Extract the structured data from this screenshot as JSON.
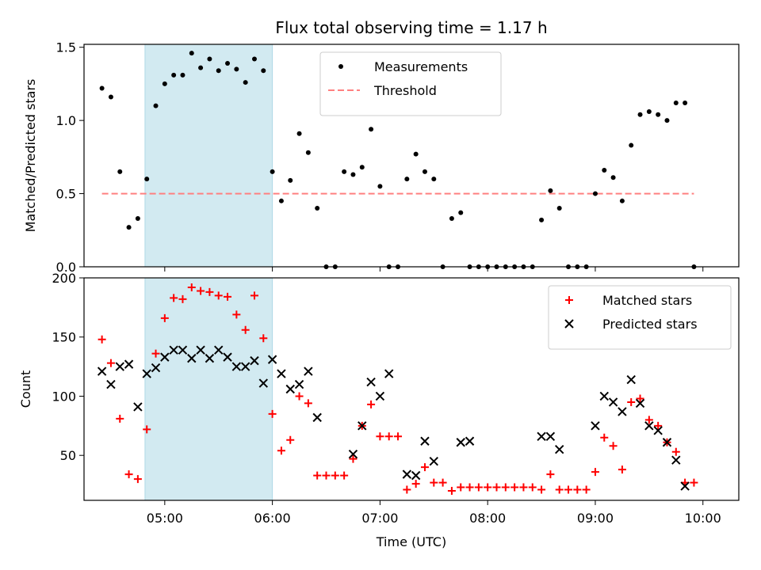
{
  "chart_data": {
    "title": "Flux total observing time = 1.17 h",
    "xlabel": "Time (UTC)",
    "x_ticks": [
      "05:00",
      "06:00",
      "07:00",
      "08:00",
      "09:00",
      "10:00"
    ],
    "x_domain": [
      "04:15",
      "10:20"
    ],
    "shaded_span": [
      "04:49",
      "06:00"
    ],
    "shade_color": "#add8e6",
    "panels": [
      {
        "type": "scatter",
        "ylabel": "Matched/Predicted stars",
        "ylim": [
          0,
          1.52
        ],
        "yticks": [
          0.0,
          0.5,
          1.0,
          1.5
        ],
        "ytick_labels": [
          "0.0",
          "0.5",
          "1.0",
          "1.5"
        ],
        "legend": "top-center",
        "threshold": {
          "name": "Threshold",
          "value": 0.5,
          "x_range": [
            "04:25",
            "09:55"
          ],
          "color": "#ff8080"
        },
        "series": [
          {
            "name": "Measurements",
            "marker": "dot",
            "color": "#000000",
            "points": [
              [
                "04:25",
                1.22
              ],
              [
                "04:30",
                1.16
              ],
              [
                "04:35",
                0.65
              ],
              [
                "04:40",
                0.27
              ],
              [
                "04:45",
                0.33
              ],
              [
                "04:50",
                0.6
              ],
              [
                "04:55",
                1.1
              ],
              [
                "05:00",
                1.25
              ],
              [
                "05:05",
                1.31
              ],
              [
                "05:10",
                1.31
              ],
              [
                "05:15",
                1.46
              ],
              [
                "05:20",
                1.36
              ],
              [
                "05:25",
                1.42
              ],
              [
                "05:30",
                1.34
              ],
              [
                "05:35",
                1.39
              ],
              [
                "05:40",
                1.35
              ],
              [
                "05:45",
                1.26
              ],
              [
                "05:50",
                1.42
              ],
              [
                "05:55",
                1.34
              ],
              [
                "06:00",
                0.65
              ],
              [
                "06:05",
                0.45
              ],
              [
                "06:10",
                0.59
              ],
              [
                "06:15",
                0.91
              ],
              [
                "06:20",
                0.78
              ],
              [
                "06:25",
                0.4
              ],
              [
                "06:30",
                0.0
              ],
              [
                "06:35",
                0.0
              ],
              [
                "06:40",
                0.65
              ],
              [
                "06:45",
                0.63
              ],
              [
                "06:50",
                0.68
              ],
              [
                "06:55",
                0.94
              ],
              [
                "07:00",
                0.55
              ],
              [
                "07:05",
                0.0
              ],
              [
                "07:10",
                0.0
              ],
              [
                "07:15",
                0.6
              ],
              [
                "07:20",
                0.77
              ],
              [
                "07:25",
                0.65
              ],
              [
                "07:30",
                0.6
              ],
              [
                "07:35",
                0.0
              ],
              [
                "07:40",
                0.33
              ],
              [
                "07:45",
                0.37
              ],
              [
                "07:50",
                0.0
              ],
              [
                "07:55",
                0.0
              ],
              [
                "08:00",
                0.0
              ],
              [
                "08:05",
                0.0
              ],
              [
                "08:10",
                0.0
              ],
              [
                "08:15",
                0.0
              ],
              [
                "08:20",
                0.0
              ],
              [
                "08:25",
                0.0
              ],
              [
                "08:30",
                0.32
              ],
              [
                "08:35",
                0.52
              ],
              [
                "08:40",
                0.4
              ],
              [
                "08:45",
                0.0
              ],
              [
                "08:50",
                0.0
              ],
              [
                "08:55",
                0.0
              ],
              [
                "09:00",
                0.5
              ],
              [
                "09:05",
                0.66
              ],
              [
                "09:10",
                0.61
              ],
              [
                "09:15",
                0.45
              ],
              [
                "09:20",
                0.83
              ],
              [
                "09:25",
                1.04
              ],
              [
                "09:30",
                1.06
              ],
              [
                "09:35",
                1.04
              ],
              [
                "09:40",
                1.0
              ],
              [
                "09:45",
                1.12
              ],
              [
                "09:50",
                1.12
              ],
              [
                "09:55",
                0.0
              ]
            ]
          }
        ]
      },
      {
        "type": "scatter",
        "ylabel": "Count",
        "ylim": [
          12,
          200
        ],
        "yticks": [
          50,
          100,
          150,
          200
        ],
        "ytick_labels": [
          "50",
          "100",
          "150",
          "200"
        ],
        "legend": "top-right",
        "series": [
          {
            "name": "Matched stars",
            "marker": "plus",
            "color": "#ff0000",
            "points": [
              [
                "04:25",
                148
              ],
              [
                "04:30",
                128
              ],
              [
                "04:35",
                81
              ],
              [
                "04:40",
                34
              ],
              [
                "04:45",
                30
              ],
              [
                "04:50",
                72
              ],
              [
                "04:55",
                136
              ],
              [
                "05:00",
                166
              ],
              [
                "05:05",
                183
              ],
              [
                "05:10",
                182
              ],
              [
                "05:15",
                192
              ],
              [
                "05:20",
                189
              ],
              [
                "05:25",
                188
              ],
              [
                "05:30",
                185
              ],
              [
                "05:35",
                184
              ],
              [
                "05:40",
                169
              ],
              [
                "05:45",
                156
              ],
              [
                "05:50",
                185
              ],
              [
                "05:55",
                149
              ],
              [
                "06:00",
                85
              ],
              [
                "06:05",
                54
              ],
              [
                "06:10",
                63
              ],
              [
                "06:15",
                100
              ],
              [
                "06:20",
                94
              ],
              [
                "06:25",
                33
              ],
              [
                "06:30",
                33
              ],
              [
                "06:35",
                33
              ],
              [
                "06:40",
                33
              ],
              [
                "06:45",
                47
              ],
              [
                "06:50",
                75
              ],
              [
                "06:55",
                93
              ],
              [
                "07:00",
                66
              ],
              [
                "07:05",
                66
              ],
              [
                "07:10",
                66
              ],
              [
                "07:15",
                21
              ],
              [
                "07:20",
                26
              ],
              [
                "07:25",
                40
              ],
              [
                "07:30",
                27
              ],
              [
                "07:35",
                27
              ],
              [
                "07:40",
                20
              ],
              [
                "07:45",
                23
              ],
              [
                "07:50",
                23
              ],
              [
                "07:55",
                23
              ],
              [
                "08:00",
                23
              ],
              [
                "08:05",
                23
              ],
              [
                "08:10",
                23
              ],
              [
                "08:15",
                23
              ],
              [
                "08:20",
                23
              ],
              [
                "08:25",
                23
              ],
              [
                "08:30",
                21
              ],
              [
                "08:35",
                34
              ],
              [
                "08:40",
                21
              ],
              [
                "08:45",
                21
              ],
              [
                "08:50",
                21
              ],
              [
                "08:55",
                21
              ],
              [
                "09:00",
                36
              ],
              [
                "09:05",
                65
              ],
              [
                "09:10",
                58
              ],
              [
                "09:15",
                38
              ],
              [
                "09:20",
                95
              ],
              [
                "09:25",
                98
              ],
              [
                "09:30",
                80
              ],
              [
                "09:35",
                75
              ],
              [
                "09:40",
                61
              ],
              [
                "09:45",
                53
              ],
              [
                "09:50",
                27
              ],
              [
                "09:55",
                27
              ]
            ]
          },
          {
            "name": "Predicted stars",
            "marker": "x",
            "color": "#000000",
            "points": [
              [
                "04:25",
                121
              ],
              [
                "04:30",
                110
              ],
              [
                "04:35",
                125
              ],
              [
                "04:40",
                127
              ],
              [
                "04:45",
                91
              ],
              [
                "04:50",
                119
              ],
              [
                "04:55",
                124
              ],
              [
                "05:00",
                133
              ],
              [
                "05:05",
                139
              ],
              [
                "05:10",
                139
              ],
              [
                "05:15",
                132
              ],
              [
                "05:20",
                139
              ],
              [
                "05:25",
                132
              ],
              [
                "05:30",
                139
              ],
              [
                "05:35",
                133
              ],
              [
                "05:40",
                125
              ],
              [
                "05:45",
                125
              ],
              [
                "05:50",
                130
              ],
              [
                "05:55",
                111
              ],
              [
                "06:00",
                131
              ],
              [
                "06:05",
                119
              ],
              [
                "06:10",
                106
              ],
              [
                "06:15",
                110
              ],
              [
                "06:20",
                121
              ],
              [
                "06:25",
                82
              ],
              [
                "06:45",
                51
              ],
              [
                "06:50",
                75
              ],
              [
                "06:55",
                112
              ],
              [
                "07:00",
                100
              ],
              [
                "07:05",
                119
              ],
              [
                "07:15",
                34
              ],
              [
                "07:20",
                33
              ],
              [
                "07:25",
                62
              ],
              [
                "07:30",
                45
              ],
              [
                "07:45",
                61
              ],
              [
                "07:50",
                62
              ],
              [
                "08:30",
                66
              ],
              [
                "08:35",
                66
              ],
              [
                "08:40",
                55
              ],
              [
                "09:00",
                75
              ],
              [
                "09:05",
                100
              ],
              [
                "09:10",
                95
              ],
              [
                "09:15",
                87
              ],
              [
                "09:20",
                114
              ],
              [
                "09:25",
                94
              ],
              [
                "09:30",
                75
              ],
              [
                "09:35",
                71
              ],
              [
                "09:40",
                61
              ],
              [
                "09:45",
                46
              ],
              [
                "09:50",
                24
              ]
            ]
          }
        ]
      }
    ]
  }
}
